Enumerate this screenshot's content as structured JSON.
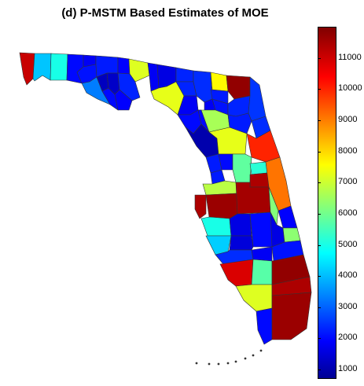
{
  "title": "(d) P-MSTM Based Estimates of MOE",
  "chart_data": {
    "type": "heatmap",
    "title": "(d) P-MSTM Based Estimates of MOE",
    "colorbar": {
      "colormap": "jet",
      "range": [
        700,
        12000
      ],
      "ticks": [
        1000,
        2000,
        3000,
        4000,
        5000,
        6000,
        7000,
        8000,
        9000,
        10000,
        11000
      ],
      "tick_labels": [
        "1000",
        "2000",
        "3000",
        "4000",
        "5000",
        "6000",
        "7000",
        "8000",
        "9000",
        "10000",
        "11000"
      ]
    },
    "regions": [
      {
        "id": "escambia",
        "value": 11200
      },
      {
        "id": "santa-rosa",
        "value": 4300
      },
      {
        "id": "okaloosa",
        "value": 5200
      },
      {
        "id": "walton",
        "value": 2200
      },
      {
        "id": "holmes",
        "value": 2000
      },
      {
        "id": "washington",
        "value": 2300
      },
      {
        "id": "jackson",
        "value": 2400
      },
      {
        "id": "bay",
        "value": 3500
      },
      {
        "id": "calhoun",
        "value": 1400
      },
      {
        "id": "gulf",
        "value": 2200
      },
      {
        "id": "liberty",
        "value": 1500
      },
      {
        "id": "franklin",
        "value": 2100
      },
      {
        "id": "gadsden",
        "value": 2100
      },
      {
        "id": "leon",
        "value": 7400
      },
      {
        "id": "wakulla",
        "value": 2500
      },
      {
        "id": "jefferson",
        "value": 2000
      },
      {
        "id": "madison",
        "value": 1800
      },
      {
        "id": "taylor",
        "value": 7500
      },
      {
        "id": "hamilton",
        "value": 2500
      },
      {
        "id": "suwannee",
        "value": 2500
      },
      {
        "id": "lafayette",
        "value": 2000
      },
      {
        "id": "dixie",
        "value": 2200
      },
      {
        "id": "columbia",
        "value": 2600
      },
      {
        "id": "nassau",
        "value": 7800
      },
      {
        "id": "duval",
        "value": 11800
      },
      {
        "id": "baker",
        "value": 2400
      },
      {
        "id": "union",
        "value": 2000
      },
      {
        "id": "bradford",
        "value": 2300
      },
      {
        "id": "clay",
        "value": 2500
      },
      {
        "id": "st-johns",
        "value": 2700
      },
      {
        "id": "alachua",
        "value": 6800
      },
      {
        "id": "gilchrist",
        "value": 2200
      },
      {
        "id": "levy",
        "value": 1200
      },
      {
        "id": "putnam",
        "value": 2400
      },
      {
        "id": "flagler",
        "value": 2600
      },
      {
        "id": "marion",
        "value": 7500
      },
      {
        "id": "volusia",
        "value": 10200
      },
      {
        "id": "citrus",
        "value": 2400
      },
      {
        "id": "sumter",
        "value": 2200
      },
      {
        "id": "lake",
        "value": 6000
      },
      {
        "id": "seminole",
        "value": 5400
      },
      {
        "id": "orange",
        "value": 11500
      },
      {
        "id": "brevard",
        "value": 9300
      },
      {
        "id": "hernando",
        "value": 2400
      },
      {
        "id": "pasco",
        "value": 7000
      },
      {
        "id": "pinellas",
        "value": 11500
      },
      {
        "id": "hillsborough",
        "value": 11700
      },
      {
        "id": "polk",
        "value": 11600
      },
      {
        "id": "osceola",
        "value": 6400
      },
      {
        "id": "indian-river",
        "value": 2100
      },
      {
        "id": "manatee",
        "value": 5200
      },
      {
        "id": "hardee",
        "value": 1800
      },
      {
        "id": "highlands",
        "value": 2200
      },
      {
        "id": "okeechobee",
        "value": 1800
      },
      {
        "id": "st-lucie",
        "value": 6500
      },
      {
        "id": "sarasota",
        "value": 4400
      },
      {
        "id": "desoto",
        "value": 1700
      },
      {
        "id": "charlotte",
        "value": 2600
      },
      {
        "id": "glades",
        "value": 2000
      },
      {
        "id": "martin",
        "value": 2300
      },
      {
        "id": "lee",
        "value": 11000
      },
      {
        "id": "hendry",
        "value": 5900
      },
      {
        "id": "palm-beach",
        "value": 11800
      },
      {
        "id": "collier",
        "value": 7400
      },
      {
        "id": "broward",
        "value": 11500
      },
      {
        "id": "monroe",
        "value": 2200
      },
      {
        "id": "miami-dade",
        "value": 11700
      }
    ]
  }
}
